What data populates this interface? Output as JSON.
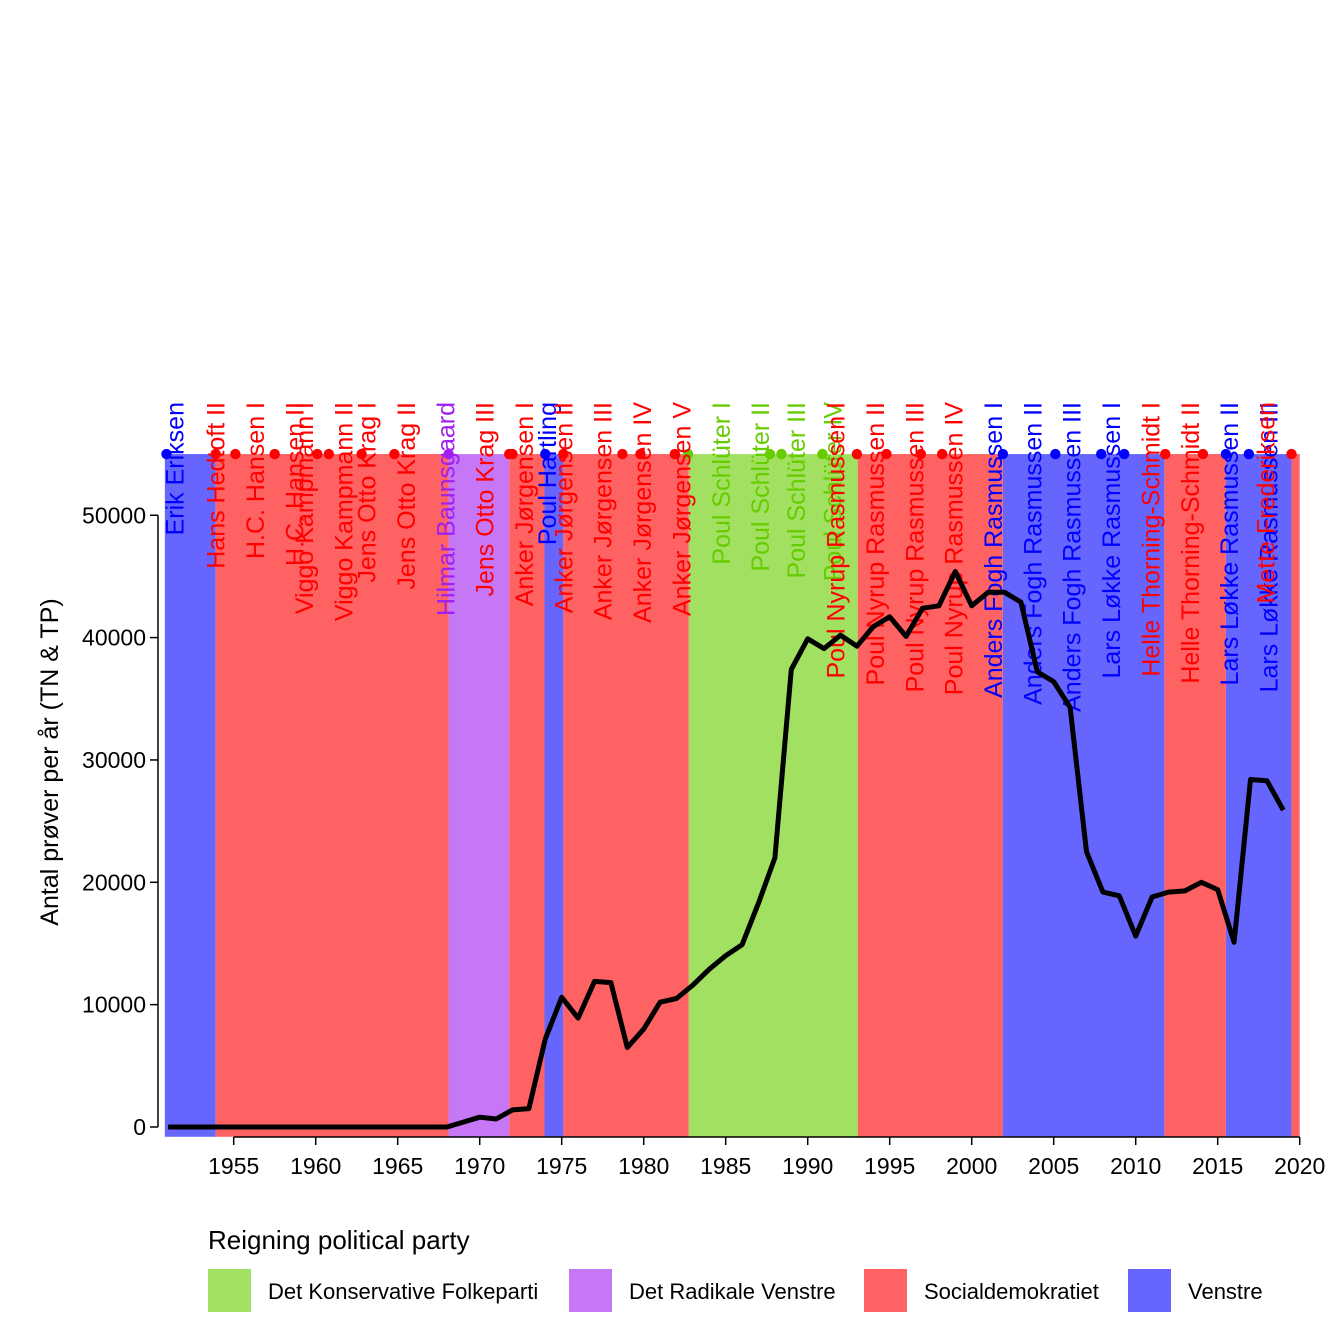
{
  "chart_data": {
    "type": "line",
    "title": "",
    "xlabel": "",
    "ylabel": "Antal prøver per år (TN & TP)",
    "xlim": [
      1950.5,
      2020
    ],
    "ylim": [
      -800,
      55500
    ],
    "x_ticks": [
      "1955",
      "1960",
      "1965",
      "1970",
      "1975",
      "1980",
      "1985",
      "1990",
      "1995",
      "2000",
      "2005",
      "2010",
      "2015",
      "2020"
    ],
    "y_ticks": [
      "0",
      "10000",
      "20000",
      "30000",
      "40000",
      "50000"
    ],
    "legend": {
      "title": "Reigning political party",
      "position": "bottom",
      "entries": [
        {
          "label": "Det Konservative Folkeparti",
          "color": "#a2e062"
        },
        {
          "label": "Det Radikale Venstre",
          "color": "#c577f5"
        },
        {
          "label": "Socialdemokratiet",
          "color": "#ff6262"
        },
        {
          "label": "Venstre",
          "color": "#6666ff"
        }
      ]
    },
    "party_colors": {
      "Det Konservative Folkeparti": "#a2e062",
      "Det Radikale Venstre": "#c577f5",
      "Socialdemokratiet": "#ff6262",
      "Venstre": "#6666ff"
    },
    "party_label_colors": {
      "Det Konservative Folkeparti": "#66cc00",
      "Det Radikale Venstre": "#a020f0",
      "Socialdemokratiet": "#ff0000",
      "Venstre": "#0000ff"
    },
    "reign_bands": [
      {
        "start": 1950.8,
        "end": 1953.9,
        "party": "Venstre"
      },
      {
        "start": 1953.9,
        "end": 1968.1,
        "party": "Socialdemokratiet"
      },
      {
        "start": 1968.1,
        "end": 1971.8,
        "party": "Det Radikale Venstre"
      },
      {
        "start": 1971.8,
        "end": 1973.95,
        "party": "Socialdemokratiet"
      },
      {
        "start": 1973.95,
        "end": 1975.1,
        "party": "Venstre"
      },
      {
        "start": 1975.1,
        "end": 1982.75,
        "party": "Socialdemokratiet"
      },
      {
        "start": 1982.75,
        "end": 1993.05,
        "party": "Det Konservative Folkeparti"
      },
      {
        "start": 1993.05,
        "end": 2001.9,
        "party": "Socialdemokratiet"
      },
      {
        "start": 2001.9,
        "end": 2011.75,
        "party": "Venstre"
      },
      {
        "start": 2011.75,
        "end": 2015.5,
        "party": "Socialdemokratiet"
      },
      {
        "start": 2015.5,
        "end": 2019.5,
        "party": "Venstre"
      },
      {
        "start": 2019.5,
        "end": 2020.0,
        "party": "Socialdemokratiet"
      }
    ],
    "governments": [
      {
        "name": "Erik Eriksen",
        "start": 1950.9,
        "label_x": 1951.4,
        "party": "Venstre"
      },
      {
        "name": "Hans Hedtoft II",
        "start": 1953.9,
        "label_x": 1953.9,
        "party": "Socialdemokratiet"
      },
      {
        "name": "H.C. Hansen I",
        "start": 1955.1,
        "label_x": 1956.3,
        "party": "Socialdemokratiet"
      },
      {
        "name": "H.C. Hansen II",
        "start": 1957.5,
        "label_x": 1958.7,
        "party": "Socialdemokratiet"
      },
      {
        "name": "Viggo Kampmann I",
        "start": 1960.1,
        "label_x": 1959.3,
        "party": "Socialdemokratiet"
      },
      {
        "name": "Viggo Kampmann II",
        "start": 1960.8,
        "label_x": 1961.7,
        "party": "Socialdemokratiet"
      },
      {
        "name": "Jens Otto Krag I",
        "start": 1962.8,
        "label_x": 1963.1,
        "party": "Socialdemokratiet"
      },
      {
        "name": "Jens Otto Krag II",
        "start": 1964.8,
        "label_x": 1965.5,
        "party": "Socialdemokratiet"
      },
      {
        "name": "Hilmar Baunsgaard",
        "start": 1968.1,
        "label_x": 1967.9,
        "party": "Det Radikale Venstre"
      },
      {
        "name": "Jens Otto Krag III",
        "start": 1971.8,
        "label_x": 1970.3,
        "party": "Socialdemokratiet"
      },
      {
        "name": "Anker Jørgensen I",
        "start": 1972.0,
        "label_x": 1972.7,
        "party": "Socialdemokratiet"
      },
      {
        "name": "Poul Hartling",
        "start": 1974.0,
        "label_x": 1974.1,
        "party": "Venstre"
      },
      {
        "name": "Anker Jørgensen II",
        "start": 1975.1,
        "label_x": 1975.1,
        "party": "Socialdemokratiet"
      },
      {
        "name": "Anker Jørgensen III",
        "start": 1978.7,
        "label_x": 1977.5,
        "party": "Socialdemokratiet"
      },
      {
        "name": "Anker Jørgensen IV",
        "start": 1979.8,
        "label_x": 1979.9,
        "party": "Socialdemokratiet"
      },
      {
        "name": "Anker Jørgensen V",
        "start": 1981.9,
        "label_x": 1982.3,
        "party": "Socialdemokratiet"
      },
      {
        "name": "Poul Schlüter I",
        "start": 1982.7,
        "label_x": 1984.7,
        "party": "Det Konservative Folkeparti"
      },
      {
        "name": "Poul Schlüter II",
        "start": 1987.7,
        "label_x": 1987.1,
        "party": "Det Konservative Folkeparti"
      },
      {
        "name": "Poul Schlüter III",
        "start": 1988.4,
        "label_x": 1989.3,
        "party": "Det Konservative Folkeparti"
      },
      {
        "name": "Poul Schlüter IV",
        "start": 1990.9,
        "label_x": 1991.5,
        "party": "Det Konservative Folkeparti"
      },
      {
        "name": "Poul Nyrup Rasmussen I",
        "start": 1993.0,
        "label_x": 1991.7,
        "party": "Socialdemokratiet"
      },
      {
        "name": "Poul Nyrup Rasmussen II",
        "start": 1994.8,
        "label_x": 1994.1,
        "party": "Socialdemokratiet"
      },
      {
        "name": "Poul Nyrup Rasmussen III",
        "start": 1996.9,
        "label_x": 1996.5,
        "party": "Socialdemokratiet"
      },
      {
        "name": "Poul Nyrup Rasmussen IV",
        "start": 1998.2,
        "label_x": 1998.9,
        "party": "Socialdemokratiet"
      },
      {
        "name": "Anders Fogh Rasmussen I",
        "start": 2001.9,
        "label_x": 2001.3,
        "party": "Venstre"
      },
      {
        "name": "Anders Fogh Rasmussen II",
        "start": 2005.1,
        "label_x": 2003.7,
        "party": "Venstre"
      },
      {
        "name": "Anders Fogh Rasmussen III",
        "start": 2007.9,
        "label_x": 2006.1,
        "party": "Venstre"
      },
      {
        "name": "Lars Løkke Rasmussen I",
        "start": 2009.3,
        "label_x": 2008.5,
        "party": "Venstre"
      },
      {
        "name": "Helle Thorning-Schmidt I",
        "start": 2011.8,
        "label_x": 2010.9,
        "party": "Socialdemokratiet"
      },
      {
        "name": "Helle Thorning-Schmidt II",
        "start": 2014.1,
        "label_x": 2013.3,
        "party": "Socialdemokratiet"
      },
      {
        "name": "Lars Løkke Rasmussen II",
        "start": 2015.5,
        "label_x": 2015.7,
        "party": "Venstre"
      },
      {
        "name": "Lars Løkke Rasmussen III",
        "start": 2016.9,
        "label_x": 2018.1,
        "party": "Venstre"
      },
      {
        "name": "Mette Frederiksen",
        "start": 2019.5,
        "label_x": 2017.9,
        "party": "Socialdemokratiet"
      }
    ],
    "series": [
      {
        "x": [
          1951,
          1952,
          1953,
          1954,
          1955,
          1956,
          1957,
          1958,
          1959,
          1960,
          1961,
          1962,
          1963,
          1964,
          1965,
          1966,
          1967,
          1968,
          1969,
          1970,
          1971,
          1972,
          1973,
          1974,
          1975,
          1976,
          1977,
          1978,
          1979,
          1980,
          1981,
          1982,
          1983,
          1984,
          1985,
          1986,
          1987,
          1988,
          1989,
          1990,
          1991,
          1992,
          1993,
          1994,
          1995,
          1996,
          1997,
          1998,
          1999,
          2000,
          2001,
          2002,
          2003,
          2004,
          2005,
          2006,
          2007,
          2008,
          2009,
          2010,
          2011,
          2012,
          2013,
          2014,
          2015,
          2016,
          2017,
          2018,
          2019
        ],
        "values": [
          0,
          0,
          0,
          0,
          0,
          0,
          0,
          0,
          0,
          0,
          0,
          0,
          0,
          0,
          0,
          0,
          0,
          0,
          400,
          800,
          650,
          1400,
          1500,
          7200,
          10600,
          8900,
          11900,
          11800,
          6500,
          8000,
          10200,
          10500,
          11600,
          12900,
          14000,
          14900,
          18300,
          22000,
          37400,
          39900,
          39100,
          40200,
          39300,
          40900,
          41700,
          40100,
          42400,
          42600,
          45400,
          42600,
          43700,
          43700,
          42900,
          37200,
          36400,
          34300,
          22500,
          19200,
          18900,
          15600,
          18800,
          19200,
          19300,
          20000,
          19400,
          15100,
          28400,
          28300,
          25900
        ]
      }
    ]
  }
}
